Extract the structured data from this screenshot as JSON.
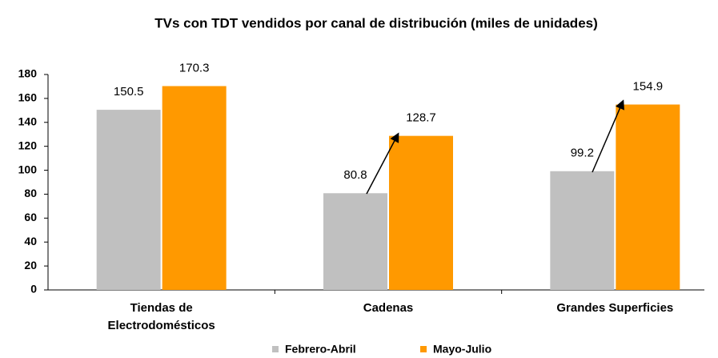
{
  "chart_data": {
    "type": "bar",
    "title": "TVs con TDT vendidos por canal de distribución (miles de unidades)",
    "categories": [
      "Tiendas de Electrodomésticos",
      "Cadenas",
      "Grandes Superficies"
    ],
    "series": [
      {
        "name": "Febrero-Abril",
        "color": "#c0c0c0",
        "values": [
          150.5,
          80.8,
          99.2
        ]
      },
      {
        "name": "Mayo-Julio",
        "color": "#ff9900",
        "values": [
          170.3,
          128.7,
          154.9
        ]
      }
    ],
    "ylim": [
      0,
      180
    ],
    "yticks": [
      0,
      20,
      40,
      60,
      80,
      100,
      120,
      140,
      160,
      180
    ],
    "legend": "bottom"
  }
}
